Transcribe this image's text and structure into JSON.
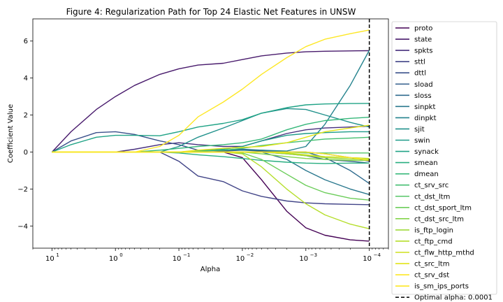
{
  "chart_data": {
    "type": "line",
    "title": "Figure 4: Regularization Path for Top 24 Elastic Net Features in UNSW",
    "xlabel": "Alpha",
    "ylabel": "Coefficient Value",
    "x_scale": "log",
    "x_reversed": true,
    "xlim": [
      20,
      5e-05
    ],
    "ylim": [
      -5.2,
      7.2
    ],
    "x_ticks": [
      {
        "value": 10,
        "label": "10",
        "exp": "1"
      },
      {
        "value": 1,
        "label": "10",
        "exp": "0"
      },
      {
        "value": 0.1,
        "label": "10",
        "exp": "−1"
      },
      {
        "value": 0.01,
        "label": "10",
        "exp": "−2"
      },
      {
        "value": 0.001,
        "label": "10",
        "exp": "−3"
      },
      {
        "value": 0.0001,
        "label": "10",
        "exp": "−4"
      }
    ],
    "y_ticks": [
      -4,
      -2,
      0,
      2,
      4,
      6
    ],
    "grid": false,
    "legend_position": "outside-right",
    "optimal_alpha": {
      "value": 0.0001,
      "label": "Optimal alpha: 0.0001"
    },
    "x": [
      10,
      5,
      2,
      1,
      0.5,
      0.2,
      0.1,
      0.05,
      0.02,
      0.01,
      0.005,
      0.002,
      0.001,
      0.0005,
      0.0002,
      0.0001
    ],
    "series": [
      {
        "name": "proto",
        "color": "#440154",
        "values": [
          0,
          0,
          0,
          0,
          0,
          0,
          0,
          0,
          0,
          -0.3,
          -1.5,
          -3.2,
          -4.1,
          -4.5,
          -4.75,
          -4.82
        ]
      },
      {
        "name": "state",
        "color": "#481a6c",
        "values": [
          0,
          1.1,
          2.3,
          3.0,
          3.6,
          4.2,
          4.5,
          4.7,
          4.8,
          5.0,
          5.2,
          5.35,
          5.42,
          5.45,
          5.47,
          5.48
        ]
      },
      {
        "name": "spkts",
        "color": "#472f7d",
        "values": [
          0,
          0,
          0,
          0,
          0.15,
          0.4,
          0.5,
          0.4,
          0.3,
          0.3,
          0.6,
          1.0,
          1.2,
          1.3,
          1.35,
          1.4
        ]
      },
      {
        "name": "sttl",
        "color": "#414487",
        "values": [
          0,
          0,
          0,
          0,
          0,
          0,
          -0.5,
          -1.3,
          -1.6,
          -2.1,
          -2.4,
          -2.65,
          -2.75,
          -2.8,
          -2.83,
          -2.85
        ]
      },
      {
        "name": "dttl",
        "color": "#3b518b",
        "values": [
          0,
          0.6,
          1.05,
          1.1,
          0.95,
          0.6,
          0.4,
          0.1,
          0.05,
          0.1,
          0.05,
          0,
          0,
          -0.1,
          -0.3,
          -0.5
        ]
      },
      {
        "name": "sload",
        "color": "#355f8d",
        "values": [
          0,
          0,
          0,
          0,
          0,
          0,
          0,
          0,
          0,
          0,
          0,
          -0.1,
          -0.2,
          -0.4,
          -0.5,
          -0.6
        ]
      },
      {
        "name": "sloss",
        "color": "#2f6b8e",
        "values": [
          0,
          0,
          0,
          0,
          0,
          0,
          0,
          0.05,
          0.1,
          0.15,
          0.1,
          0,
          0,
          -0.3,
          -1.0,
          -1.7
        ]
      },
      {
        "name": "sinpkt",
        "color": "#2a788e",
        "values": [
          0,
          0,
          0,
          0,
          0,
          0,
          0,
          0,
          0,
          0,
          0,
          -0.4,
          -1.0,
          -1.5,
          -2.0,
          -2.3
        ]
      },
      {
        "name": "dinpkt",
        "color": "#25838e",
        "values": [
          0,
          0,
          0,
          0,
          0,
          0,
          0,
          0.05,
          0.1,
          0.1,
          0.1,
          0.05,
          0.3,
          1.5,
          3.6,
          5.5
        ]
      },
      {
        "name": "sjit",
        "color": "#21918c",
        "values": [
          0,
          0,
          0,
          0,
          0,
          0,
          0.3,
          0.8,
          1.3,
          1.7,
          2.1,
          2.35,
          2.3,
          2.0,
          1.6,
          1.35
        ]
      },
      {
        "name": "swin",
        "color": "#1e9c89",
        "values": [
          0,
          0,
          0,
          0,
          0,
          0,
          0,
          0.05,
          0.15,
          0.3,
          0.6,
          0.9,
          1.0,
          1.05,
          1.1,
          1.1
        ]
      },
      {
        "name": "synack",
        "color": "#20a386",
        "values": [
          0,
          0.4,
          0.8,
          0.9,
          0.9,
          0.88,
          1.1,
          1.35,
          1.55,
          1.75,
          2.1,
          2.4,
          2.55,
          2.6,
          2.62,
          2.63
        ]
      },
      {
        "name": "smean",
        "color": "#28ae80",
        "values": [
          0,
          0,
          0,
          0,
          0,
          0,
          -0.05,
          -0.15,
          -0.25,
          -0.35,
          -0.45,
          -0.55,
          -0.6,
          -0.62,
          -0.6,
          -0.6
        ]
      },
      {
        "name": "dmean",
        "color": "#35b779",
        "values": [
          0,
          0,
          0,
          0,
          0,
          0.1,
          0.2,
          0.3,
          0.4,
          0.5,
          0.7,
          1.2,
          1.5,
          1.7,
          1.82,
          1.88
        ]
      },
      {
        "name": "ct_srv_src",
        "color": "#44bf70",
        "values": [
          0,
          0,
          0,
          0,
          0,
          0,
          0,
          0.05,
          0.1,
          0.2,
          0.35,
          0.5,
          0.6,
          0.7,
          0.75,
          0.8
        ]
      },
      {
        "name": "ct_dst_ltm",
        "color": "#56c667",
        "values": [
          0,
          0,
          0,
          0,
          0,
          0,
          0,
          0,
          0,
          0,
          0,
          0,
          -0.05,
          -0.05,
          -0.05,
          -0.05
        ]
      },
      {
        "name": "ct_dst_sport_ltm",
        "color": "#6ccd5a",
        "values": [
          0,
          0,
          0,
          0,
          0,
          0,
          0,
          0,
          0,
          -0.05,
          -0.4,
          -1.2,
          -1.8,
          -2.2,
          -2.5,
          -2.6
        ]
      },
      {
        "name": "ct_dst_src_ltm",
        "color": "#84d44b",
        "values": [
          0,
          0,
          0,
          0,
          0,
          0,
          0,
          0,
          0,
          0,
          -0.1,
          -0.25,
          -0.35,
          -0.4,
          -0.45,
          -0.45
        ]
      },
      {
        "name": "is_ftp_login",
        "color": "#9fda3a",
        "values": [
          0,
          0,
          0,
          0,
          0,
          0,
          0,
          0,
          0,
          0,
          0,
          -0.1,
          -0.2,
          -0.3,
          -0.38,
          -0.4
        ]
      },
      {
        "name": "ct_ftp_cmd",
        "color": "#b5de2b",
        "values": [
          0,
          0,
          0,
          0,
          0,
          0,
          0,
          0,
          0,
          -0.1,
          -0.8,
          -2.0,
          -2.8,
          -3.4,
          -3.9,
          -4.15
        ]
      },
      {
        "name": "ct_flw_http_mthd",
        "color": "#cde11d",
        "values": [
          0,
          0,
          0,
          0,
          0,
          0,
          0,
          0,
          0,
          0,
          0,
          -0.05,
          -0.15,
          -0.25,
          -0.3,
          -0.35
        ]
      },
      {
        "name": "ct_src_ltm",
        "color": "#e2e418",
        "values": [
          0,
          0,
          0,
          0,
          0,
          0,
          0,
          0.1,
          0.2,
          0.25,
          0.3,
          0.5,
          0.8,
          1.1,
          1.3,
          1.45
        ]
      },
      {
        "name": "ct_srv_dst",
        "color": "#fde725",
        "values": [
          0,
          0,
          0,
          0,
          0,
          0.3,
          0.9,
          1.9,
          2.7,
          3.4,
          4.2,
          5.1,
          5.7,
          6.1,
          6.4,
          6.6
        ]
      },
      {
        "name": "is_sm_ips_ports",
        "color": "#fde725",
        "values": [
          0,
          0,
          0,
          0,
          0,
          0,
          0,
          0,
          0,
          0,
          0,
          0,
          0,
          -0.1,
          -0.3,
          -0.45
        ]
      }
    ]
  }
}
